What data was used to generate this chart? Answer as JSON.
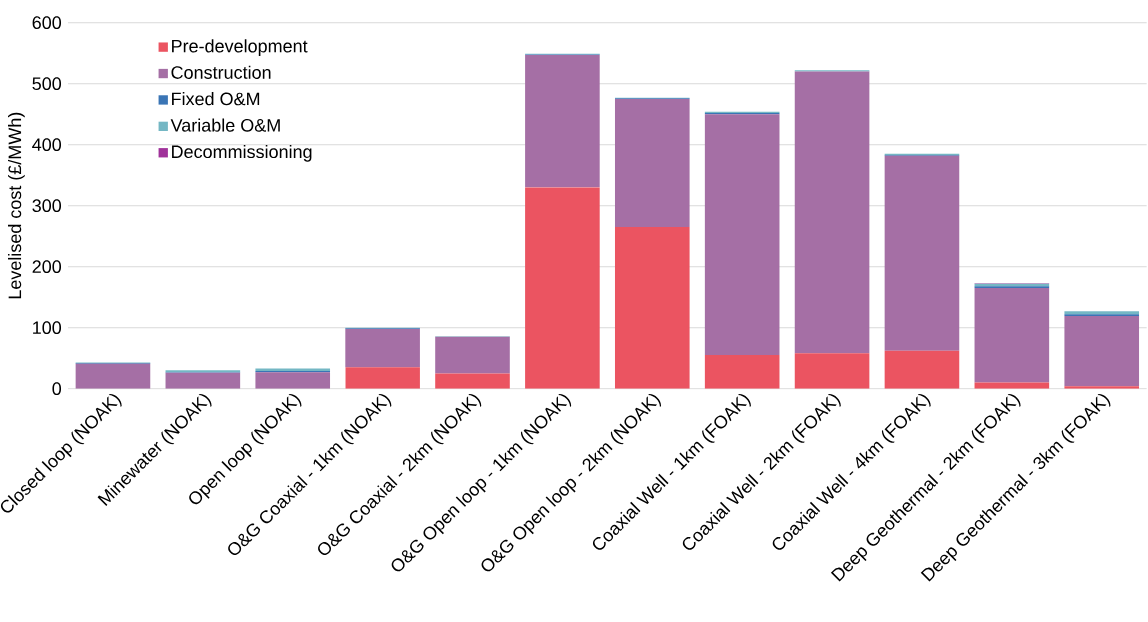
{
  "chart_data": {
    "type": "bar",
    "stacked": true,
    "ylabel": "Levelised cost (£/MWh)",
    "categories": [
      "Closed loop (NOAK)",
      "Minewater (NOAK)",
      "Open loop (NOAK)",
      "O&G Coaxial - 1km (NOAK)",
      "O&G Coaxial - 2km (NOAK)",
      "O&G Open loop - 1km (NOAK)",
      "O&G Open loop - 2km (NOAK)",
      "Coaxial Well - 1km (FOAK)",
      "Coaxial Well - 2km (FOAK)",
      "Coaxial Well - 4km (FOAK)",
      "Deep Geothermal - 2km (FOAK)",
      "Deep Geothermal - 3km (FOAK)"
    ],
    "series": [
      {
        "name": "Pre-development",
        "color": "#eb5461",
        "values": [
          0,
          0,
          0,
          35,
          25,
          330,
          265,
          55,
          58,
          62,
          10,
          4
        ]
      },
      {
        "name": "Construction",
        "color": "#a56fa5",
        "values": [
          41,
          26,
          27,
          63,
          60,
          217,
          210,
          395,
          462,
          320,
          155,
          115
        ]
      },
      {
        "name": "Fixed O&M",
        "color": "#3a75b5",
        "values": [
          1,
          1,
          2,
          1,
          null,
          1,
          1,
          2,
          null,
          1,
          3,
          3
        ]
      },
      {
        "name": "Variable O&M",
        "color": "#74b7c4",
        "values": [
          1,
          3,
          4,
          1,
          1,
          1,
          1,
          2,
          2,
          2,
          4,
          5
        ]
      },
      {
        "name": "Decommissioning",
        "color": "#a0329a",
        "values": [
          0,
          0,
          0,
          0,
          0,
          0,
          0,
          0,
          0,
          0,
          1,
          null
        ]
      }
    ],
    "ylim": [
      0,
      600
    ],
    "yticks": [
      0,
      100,
      200,
      300,
      400,
      500,
      600
    ],
    "grid": "y",
    "legend": "top left"
  }
}
